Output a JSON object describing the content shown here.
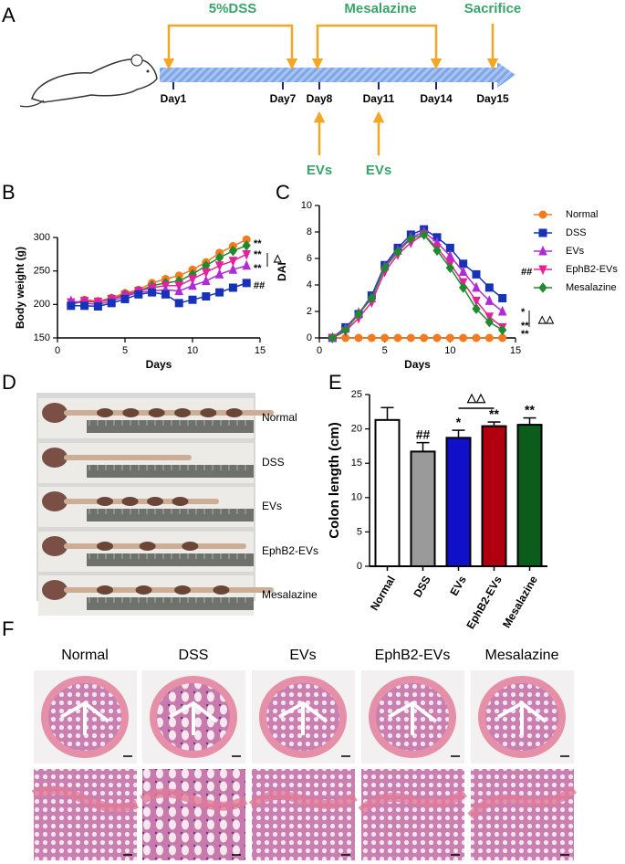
{
  "panel_letters": [
    "A",
    "B",
    "C",
    "D",
    "E",
    "F"
  ],
  "timeline": {
    "top_labels": [
      "5%DSS",
      "Mesalazine",
      "Sacrifice"
    ],
    "days": [
      "Day1",
      "Day7",
      "Day8",
      "Day11",
      "Day14",
      "Day15"
    ],
    "bottom_labels": [
      "EVs",
      "EVs"
    ]
  },
  "chart_data": [
    {
      "type": "line",
      "xlabel": "Days",
      "ylabel": "Body weight (g)",
      "x": [
        1,
        2,
        3,
        4,
        5,
        6,
        7,
        8,
        9,
        10,
        11,
        12,
        13,
        14
      ],
      "xlim": [
        0,
        15
      ],
      "xticks": [
        0,
        5,
        10,
        15
      ],
      "ylim": [
        150,
        300
      ],
      "yticks": [
        150,
        200,
        250,
        300
      ],
      "series": [
        {
          "color": "#f47a20",
          "marker": "circle",
          "values": [
            200,
            207,
            205,
            210,
            217,
            222,
            232,
            238,
            243,
            252,
            263,
            277,
            287,
            297
          ]
        },
        {
          "color": "#1f8a2e",
          "marker": "diamond",
          "values": [
            200,
            205,
            203,
            208,
            215,
            220,
            228,
            232,
            235,
            245,
            258,
            270,
            280,
            288
          ]
        },
        {
          "color": "#e8219a",
          "marker": "tri-down",
          "values": [
            203,
            205,
            204,
            208,
            214,
            220,
            225,
            228,
            228,
            238,
            248,
            258,
            265,
            275
          ]
        },
        {
          "color": "#b02ad8",
          "marker": "tri-up",
          "values": [
            205,
            202,
            200,
            205,
            212,
            218,
            220,
            222,
            220,
            228,
            235,
            245,
            252,
            258
          ]
        },
        {
          "color": "#1633b8",
          "marker": "square",
          "values": [
            198,
            198,
            197,
            202,
            208,
            215,
            218,
            215,
            202,
            207,
            212,
            218,
            225,
            232
          ]
        }
      ],
      "annotations": [
        "**",
        "**",
        "**",
        "##",
        "△"
      ]
    },
    {
      "type": "line",
      "xlabel": "Days",
      "ylabel": "DAI",
      "x": [
        1,
        2,
        3,
        4,
        5,
        6,
        7,
        8,
        9,
        10,
        11,
        12,
        13,
        14
      ],
      "xlim": [
        0,
        15
      ],
      "xticks": [
        0,
        5,
        10,
        15
      ],
      "ylim": [
        0,
        10
      ],
      "yticks": [
        0,
        2,
        4,
        6,
        8,
        10
      ],
      "legend": "right",
      "series": [
        {
          "name": "Normal",
          "color": "#f47a20",
          "marker": "circle",
          "values": [
            0,
            0,
            0,
            0,
            0,
            0,
            0,
            0,
            0,
            0,
            0,
            0,
            0,
            0
          ]
        },
        {
          "name": "DSS",
          "color": "#1633b8",
          "marker": "square",
          "values": [
            0,
            0.8,
            1.8,
            3.2,
            5.5,
            6.8,
            7.8,
            8.2,
            7.6,
            6.8,
            5.6,
            4.8,
            3.8,
            3.0
          ]
        },
        {
          "name": "EVs",
          "color": "#b02ad8",
          "marker": "tri-up",
          "values": [
            0,
            0.7,
            1.9,
            3.0,
            5.4,
            6.6,
            7.6,
            8.0,
            7.2,
            6.2,
            5.0,
            3.8,
            2.8,
            2.0
          ]
        },
        {
          "name": "EphB2-EVs",
          "color": "#e8219a",
          "marker": "tri-down",
          "values": [
            0,
            0.5,
            1.5,
            2.7,
            5.0,
            6.3,
            7.2,
            7.8,
            6.8,
            5.6,
            4.2,
            2.8,
            1.6,
            0.8
          ]
        },
        {
          "name": "Mesalazine",
          "color": "#1f8a2e",
          "marker": "diamond",
          "values": [
            0,
            0.6,
            1.8,
            3.0,
            5.3,
            6.5,
            7.5,
            7.8,
            6.6,
            5.3,
            3.8,
            2.2,
            1.2,
            0.6
          ]
        }
      ],
      "annotations": [
        "##",
        "*",
        "**",
        "**",
        "△△"
      ]
    },
    {
      "type": "bar",
      "ylabel": "Colon length (cm)",
      "categories": [
        "Normal",
        "DSS",
        "EVs",
        "EphB2-EVs",
        "Mesalazine"
      ],
      "values": [
        21.3,
        16.7,
        18.7,
        20.4,
        20.6
      ],
      "errors": [
        1.8,
        1.3,
        1.1,
        0.6,
        1.0
      ],
      "colors": [
        "#ffffff",
        "#9a9a9a",
        "#1010c8",
        "#b00010",
        "#0c5c1c"
      ],
      "ylim": [
        0,
        25
      ],
      "yticks": [
        0,
        5,
        10,
        15,
        20,
        25
      ],
      "significance": [
        null,
        "##",
        "*",
        "**",
        "**"
      ],
      "bracket_label": "△△"
    }
  ],
  "photos": {
    "labels": [
      "Normal",
      "DSS",
      "EVs",
      "EphB2-EVs",
      "Mesalazine"
    ]
  },
  "histology": {
    "labels": [
      "Normal",
      "DSS",
      "EVs",
      "EphB2-EVs",
      "Mesalazine"
    ]
  }
}
